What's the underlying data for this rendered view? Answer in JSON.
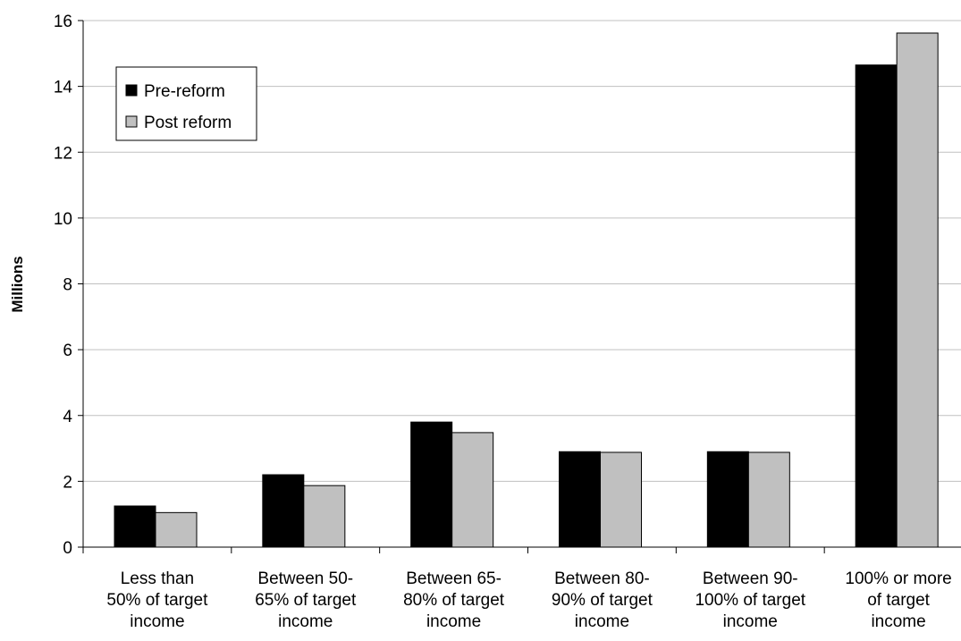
{
  "chart_data": {
    "type": "bar",
    "title": "",
    "xlabel": "",
    "ylabel": "Millions",
    "ylim": [
      0,
      16
    ],
    "yticks": [
      0,
      2,
      4,
      6,
      8,
      10,
      12,
      14,
      16
    ],
    "grid": "horizontal",
    "legend_position": "top-left",
    "categories": [
      [
        "Less than",
        "50% of target",
        "income"
      ],
      [
        "Between 50-",
        "65% of target",
        "income"
      ],
      [
        "Between 65-",
        "80% of target",
        "income"
      ],
      [
        "Between 80-",
        "90% of target",
        "income"
      ],
      [
        "Between 90-",
        "100% of target",
        "income"
      ],
      [
        "100% or more",
        "of target",
        "income"
      ]
    ],
    "series": [
      {
        "name": "Pre-reform",
        "color": "#000000",
        "values": [
          1.25,
          2.2,
          3.8,
          2.9,
          2.9,
          14.65
        ]
      },
      {
        "name": "Post reform",
        "color": "#c0c0c0",
        "values": [
          1.05,
          1.87,
          3.48,
          2.88,
          2.88,
          15.62
        ]
      }
    ]
  }
}
